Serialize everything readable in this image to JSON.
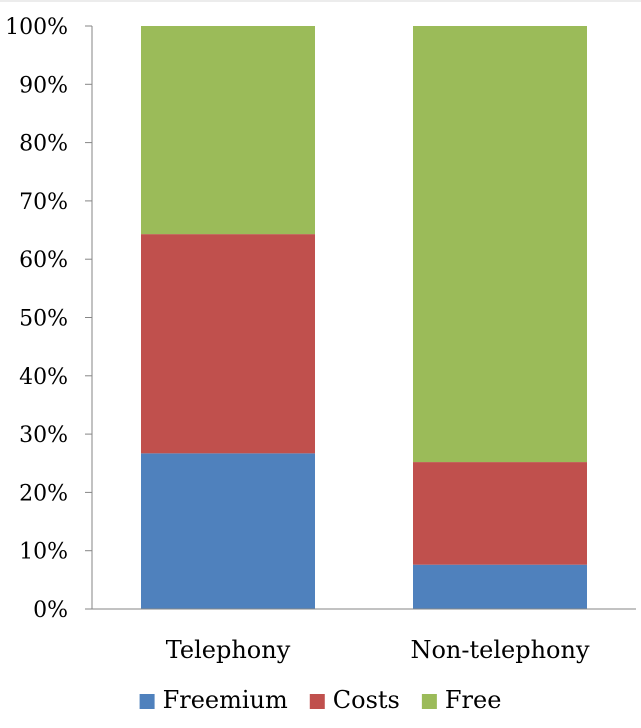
{
  "chart_data": {
    "type": "bar",
    "stacked": true,
    "categories": [
      "Telephony",
      "Non-telephony"
    ],
    "series": [
      {
        "name": "Freemium",
        "values": [
          26.7,
          7.6
        ],
        "color": "#4F81BD"
      },
      {
        "name": "Costs",
        "values": [
          37.6,
          17.6
        ],
        "color": "#C0504D"
      },
      {
        "name": "Free",
        "values": [
          35.7,
          74.8
        ],
        "color": "#9BBB59"
      }
    ],
    "ylim": [
      0,
      100
    ],
    "yticks": [
      "0%",
      "10%",
      "20%",
      "30%",
      "40%",
      "50%",
      "60%",
      "70%",
      "80%",
      "90%",
      "100%"
    ],
    "grid": false,
    "legend": "bottom"
  }
}
